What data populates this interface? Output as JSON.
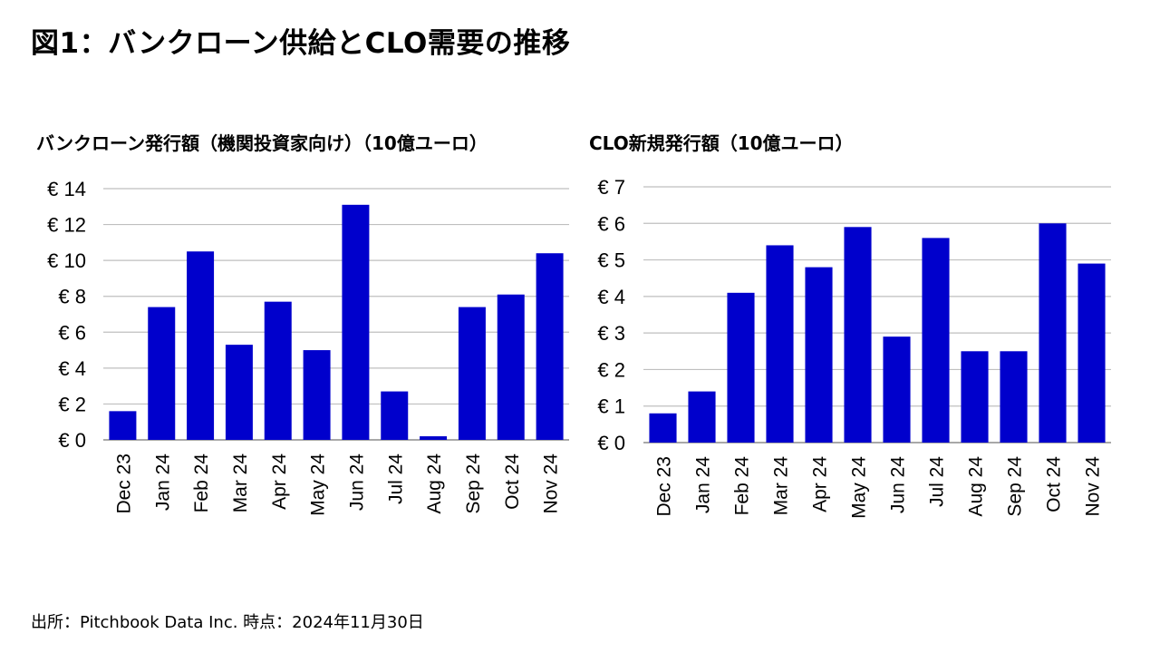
{
  "title": "図1：バンクローン供給とCLO需要の推移",
  "source": "出所：Pitchbook Data Inc. 時点：2024年11月30日",
  "colors": {
    "bar": "#0000CC",
    "grid": "#bfbfbf",
    "axis": "#8c8c8c"
  },
  "chart_data": [
    {
      "type": "bar",
      "title": "バンクローン発行額（機関投資家向け）（10億ユーロ）",
      "categories": [
        "Dec 23",
        "Jan 24",
        "Feb 24",
        "Mar 24",
        "Apr 24",
        "May 24",
        "Jun 24",
        "Jul 24",
        "Aug 24",
        "Sep 24",
        "Oct 24",
        "Nov 24"
      ],
      "values": [
        1.6,
        7.4,
        10.5,
        5.3,
        7.7,
        5.0,
        13.1,
        2.7,
        0.2,
        7.4,
        8.1,
        10.4
      ],
      "ylim": [
        0,
        14
      ],
      "yticks": [
        0,
        2,
        4,
        6,
        8,
        10,
        12,
        14
      ],
      "ytick_labels": [
        "€ 0",
        "€ 2",
        "€ 4",
        "€ 6",
        "€ 8",
        "€ 10",
        "€ 12",
        "€ 14"
      ],
      "grid": true,
      "legend": "none"
    },
    {
      "type": "bar",
      "title": "CLO新規発行額（10億ユーロ）",
      "categories": [
        "Dec 23",
        "Jan 24",
        "Feb 24",
        "Mar 24",
        "Apr 24",
        "May 24",
        "Jun 24",
        "Jul 24",
        "Aug 24",
        "Sep 24",
        "Oct 24",
        "Nov 24"
      ],
      "values": [
        0.8,
        1.4,
        4.1,
        5.4,
        4.8,
        5.9,
        2.9,
        5.6,
        2.5,
        2.5,
        6.0,
        4.9
      ],
      "ylim": [
        0,
        7
      ],
      "yticks": [
        0,
        1,
        2,
        3,
        4,
        5,
        6,
        7
      ],
      "ytick_labels": [
        "€ 0",
        "€ 1",
        "€ 2",
        "€ 3",
        "€ 4",
        "€ 5",
        "€ 6",
        "€ 7"
      ],
      "grid": true,
      "legend": "none"
    }
  ]
}
